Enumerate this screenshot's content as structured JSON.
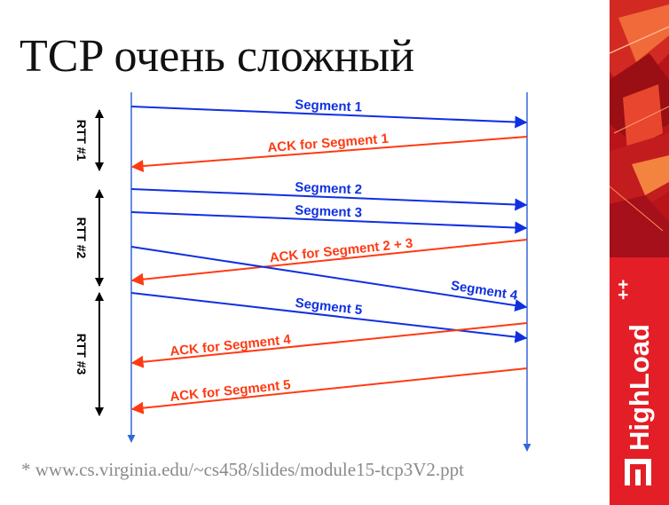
{
  "slide": {
    "title": "TCP очень сложный",
    "footnote": "* www.cs.virginia.edu/~cs458/slides/module15-tcp3V2.ppt"
  },
  "brand": {
    "logo_text": "HighLoad",
    "logo_superscript": "++"
  },
  "diagram": {
    "rtt_labels": [
      "RTT #1",
      "RTT #2",
      "RTT #3"
    ],
    "messages": [
      {
        "label": "Segment 1",
        "color": "#1030e0"
      },
      {
        "label": "ACK for Segment 1",
        "color": "#ff3a12"
      },
      {
        "label": "Segment 2",
        "color": "#1030e0"
      },
      {
        "label": "Segment 3",
        "color": "#1030e0"
      },
      {
        "label": "ACK for Segment 2 + 3",
        "color": "#ff3a12"
      },
      {
        "label": "Segment 4",
        "color": "#1030e0"
      },
      {
        "label": "Segment 5",
        "color": "#1030e0"
      },
      {
        "label": "ACK for Segment 4",
        "color": "#ff3a12"
      },
      {
        "label": "ACK for Segment 5",
        "color": "#ff3a12"
      }
    ]
  },
  "colors": {
    "segment": "#1030e0",
    "ack": "#ff3a12",
    "timeline": "#3366dd",
    "brand_red": "#e41e26"
  }
}
